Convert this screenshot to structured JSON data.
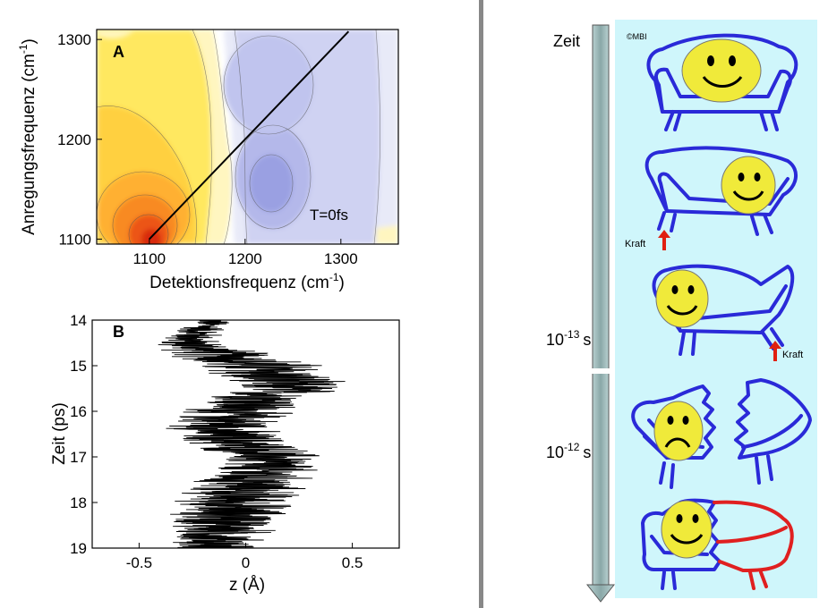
{
  "chart_data": [
    {
      "type": "heatmap",
      "panel_label": "A",
      "xlabel": "Detektionsfrequenz (cm",
      "ylabel": "Anregungsfrequenz (cm",
      "unit_sup": "-1",
      "unit_close": ")",
      "xlim": [
        1045,
        1360
      ],
      "ylim": [
        1095,
        1310
      ],
      "x_ticks": [
        1100,
        1200,
        1300
      ],
      "y_ticks": [
        1100,
        1200,
        1300
      ],
      "annotation": "T=0fs",
      "diagonal": [
        [
          1100,
          1100
        ],
        [
          1308,
          1308
        ]
      ],
      "features": [
        {
          "sign": "positive",
          "x": 1100,
          "y": 1100,
          "level": 1.0
        },
        {
          "sign": "negative",
          "x": 1225,
          "y": 1155,
          "level": 0.85
        },
        {
          "sign": "negative",
          "x": 1215,
          "y": 1265,
          "level": 0.55
        }
      ],
      "colors": {
        "positive": [
          "#fff6c0",
          "#ffe860",
          "#ffc030",
          "#f08020",
          "#e03010"
        ],
        "negative": [
          "#e8eaf8",
          "#cfd2f2",
          "#b4b8ea",
          "#9aa0e2"
        ]
      }
    },
    {
      "type": "line",
      "panel_label": "B",
      "xlabel": "z (Å)",
      "ylabel": "Zeit (ps)",
      "xlim": [
        -0.72,
        0.72
      ],
      "ylim": [
        19,
        14
      ],
      "x_ticks": [
        -0.5,
        0,
        0.5
      ],
      "x_tick_labels": [
        "-0.5",
        "0",
        "0.5"
      ],
      "y_ticks": [
        14,
        15,
        16,
        17,
        18,
        19
      ],
      "series": [
        {
          "t": [
            14.0,
            14.5,
            15.0,
            15.5,
            16.0,
            16.5,
            17.0,
            17.5,
            18.0,
            18.5,
            19.0
          ],
          "z_mean": [
            -0.15,
            -0.28,
            0.05,
            0.2,
            -0.05,
            -0.12,
            0.12,
            0.02,
            -0.05,
            -0.1,
            -0.15
          ],
          "z_amplitude": [
            0.1,
            0.18,
            0.38,
            0.3,
            0.3,
            0.3,
            0.28,
            0.32,
            0.32,
            0.3,
            0.22
          ]
        }
      ]
    }
  ],
  "schematic": {
    "copyright": "©MBI",
    "time_label": "Zeit",
    "t1_base": "10",
    "t1_exp": "-13",
    "t1_unit": "s",
    "t2_base": "10",
    "t2_exp": "-12",
    "t2_unit": "s",
    "force_label": "Kraft",
    "colors": {
      "background": "#cff6fb",
      "sofa": "#2a2ad8",
      "broken": "#e02020",
      "face": "#f0ea3a",
      "arrow_bar": "#9ab8b8",
      "force_arrow": "#e02010",
      "divider": "#888888"
    }
  }
}
